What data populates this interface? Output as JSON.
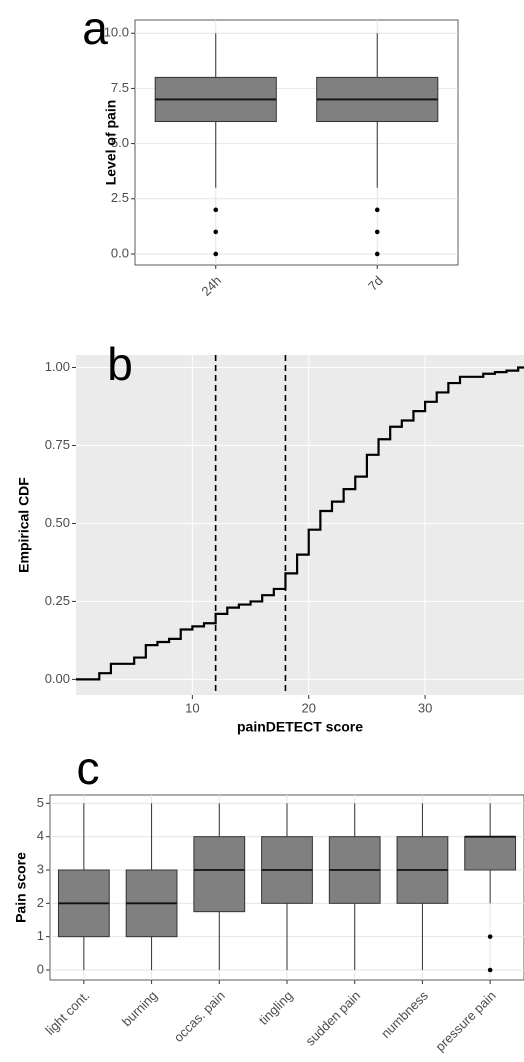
{
  "chart_data": [
    {
      "type": "box",
      "panel_label": "a",
      "ylabel": "Level of pain",
      "categories": [
        "24h",
        "7d"
      ],
      "boxes": [
        {
          "whisker_low": 3,
          "q1": 6,
          "median": 7,
          "q3": 8,
          "whisker_high": 10,
          "outliers": [
            0,
            1,
            2
          ]
        },
        {
          "whisker_low": 3,
          "q1": 6,
          "median": 7,
          "q3": 8,
          "whisker_high": 10,
          "outliers": [
            0,
            1,
            2
          ]
        }
      ],
      "color": "#808080",
      "ylim": [
        -0.5,
        10.6
      ],
      "yticks": [
        {
          "value": 0,
          "label": "0.0"
        },
        {
          "value": 2.5,
          "label": "2.5"
        },
        {
          "value": 5,
          "label": "5.0"
        },
        {
          "value": 7.5,
          "label": "7.5"
        },
        {
          "value": 10,
          "label": "10.0"
        }
      ],
      "grid": true
    },
    {
      "type": "step",
      "panel_label": "b",
      "xlabel": "painDETECT score",
      "ylabel": "Empirical CDF",
      "x": [
        0,
        1,
        2,
        3,
        4,
        5,
        6,
        7,
        8,
        9,
        10,
        11,
        12,
        13,
        14,
        15,
        16,
        17,
        18,
        19,
        20,
        21,
        22,
        23,
        24,
        25,
        26,
        27,
        28,
        29,
        30,
        31,
        32,
        33,
        34,
        35,
        36,
        37,
        38
      ],
      "values": [
        0,
        0,
        0.02,
        0.05,
        0.05,
        0.07,
        0.11,
        0.12,
        0.13,
        0.16,
        0.17,
        0.18,
        0.21,
        0.23,
        0.24,
        0.25,
        0.27,
        0.29,
        0.34,
        0.4,
        0.48,
        0.54,
        0.57,
        0.61,
        0.65,
        0.72,
        0.77,
        0.81,
        0.83,
        0.86,
        0.89,
        0.92,
        0.95,
        0.97,
        0.97,
        0.98,
        0.985,
        0.99,
        1
      ],
      "color": "#000000",
      "vlines": [
        12,
        18
      ],
      "xlim": [
        0,
        38.5
      ],
      "xticks": [
        10,
        20,
        30
      ],
      "ylim": [
        -0.05,
        1.04
      ],
      "yticks": [
        {
          "value": 0,
          "label": "0.00"
        },
        {
          "value": 0.25,
          "label": "0.25"
        },
        {
          "value": 0.5,
          "label": "0.50"
        },
        {
          "value": 0.75,
          "label": "0.75"
        },
        {
          "value": 1,
          "label": "1.00"
        }
      ],
      "grid": true
    },
    {
      "type": "box",
      "panel_label": "c",
      "ylabel": "Pain score",
      "categories": [
        "light cont.",
        "burning",
        "occas. pain",
        "tingling",
        "sudden pain",
        "numbness",
        "pressure pain"
      ],
      "boxes": [
        {
          "whisker_low": 0,
          "q1": 1,
          "median": 2,
          "q3": 3,
          "whisker_high": 5,
          "outliers": []
        },
        {
          "whisker_low": 0,
          "q1": 1,
          "median": 2,
          "q3": 3,
          "whisker_high": 5,
          "outliers": []
        },
        {
          "whisker_low": 0,
          "q1": 1.75,
          "median": 3,
          "q3": 4,
          "whisker_high": 5,
          "outliers": []
        },
        {
          "whisker_low": 0,
          "q1": 2,
          "median": 3,
          "q3": 4,
          "whisker_high": 5,
          "outliers": []
        },
        {
          "whisker_low": 0,
          "q1": 2,
          "median": 3,
          "q3": 4,
          "whisker_high": 5,
          "outliers": []
        },
        {
          "whisker_low": 0,
          "q1": 2,
          "median": 3,
          "q3": 4,
          "whisker_high": 5,
          "outliers": []
        },
        {
          "whisker_low": 2,
          "q1": 3,
          "median": 4,
          "q3": 4,
          "whisker_high": 5,
          "outliers": [
            0,
            1
          ]
        }
      ],
      "color": "#808080",
      "ylim": [
        -0.3,
        5.25
      ],
      "yticks": [
        0,
        1,
        2,
        3,
        4,
        5
      ],
      "grid": true
    }
  ]
}
